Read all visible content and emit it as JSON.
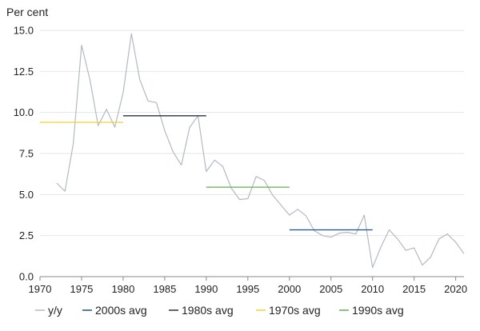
{
  "chart_data": {
    "type": "line",
    "ylabel": "Per cent",
    "xlim": [
      1970,
      2021
    ],
    "ylim": [
      0,
      15
    ],
    "grid": true,
    "legend_position": "bottom",
    "x_ticks": [
      "1970",
      "1975",
      "1980",
      "1985",
      "1990",
      "1995",
      "2000",
      "2005",
      "2010",
      "2015",
      "2020"
    ],
    "y_ticks": [
      "0.0",
      "2.5",
      "5.0",
      "7.5",
      "10.0",
      "12.5",
      "15.0"
    ],
    "series": [
      {
        "name": "y/y",
        "color": "#b3b9c4",
        "x": [
          1972,
          1973,
          1974,
          1975,
          1976,
          1977,
          1978,
          1979,
          1980,
          1981,
          1982,
          1983,
          1984,
          1985,
          1986,
          1987,
          1988,
          1989,
          1990,
          1991,
          1992,
          1993,
          1994,
          1995,
          1996,
          1997,
          1998,
          1999,
          2000,
          2001,
          2002,
          2003,
          2004,
          2005,
          2006,
          2007,
          2008,
          2009,
          2010,
          2011,
          2012,
          2013,
          2014,
          2015,
          2016,
          2017,
          2018,
          2019,
          2020,
          2021
        ],
        "values": [
          5.7,
          5.2,
          8.1,
          14.1,
          12.0,
          9.2,
          10.2,
          9.1,
          11.2,
          14.8,
          12.0,
          10.7,
          10.6,
          8.9,
          7.6,
          6.8,
          9.1,
          9.8,
          6.4,
          7.1,
          6.7,
          5.4,
          4.7,
          4.75,
          6.1,
          5.85,
          4.95,
          4.35,
          3.75,
          4.1,
          3.7,
          2.8,
          2.5,
          2.4,
          2.65,
          2.7,
          2.6,
          3.75,
          0.55,
          1.8,
          2.85,
          2.3,
          1.6,
          1.75,
          0.7,
          1.2,
          2.3,
          2.6,
          2.1,
          1.4
        ]
      },
      {
        "name": "2000s avg",
        "color": "#1f4e8c",
        "x": [
          2000,
          2010
        ],
        "values": [
          2.85,
          2.85
        ]
      },
      {
        "name": "1980s avg",
        "color": "#2b3245",
        "x": [
          1980,
          1990
        ],
        "values": [
          9.8,
          9.8
        ]
      },
      {
        "name": "1970s avg",
        "color": "#f2d231",
        "x": [
          1970,
          1980
        ],
        "values": [
          9.4,
          9.4
        ]
      },
      {
        "name": "1990s avg",
        "color": "#62b04e",
        "x": [
          1990,
          2000
        ],
        "values": [
          5.45,
          5.45
        ]
      }
    ]
  }
}
